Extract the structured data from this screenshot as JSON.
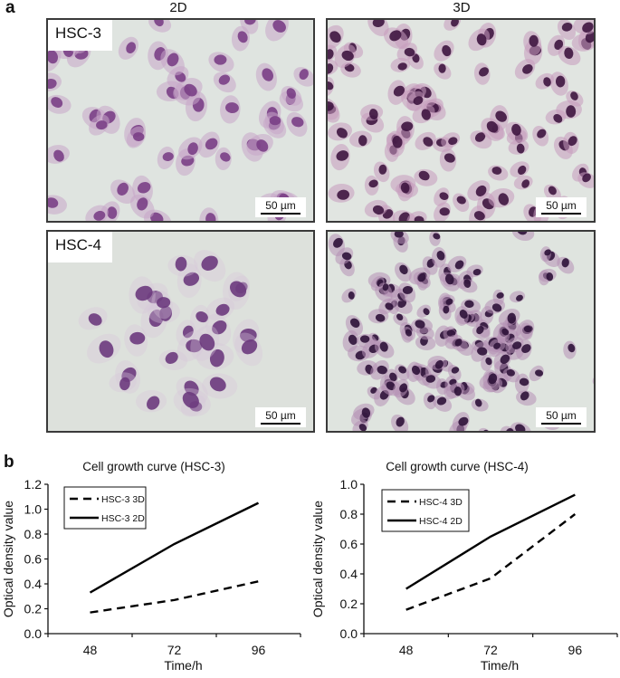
{
  "figure": {
    "panel_a_label": "a",
    "panel_b_label": "b",
    "column_headers": [
      "2D",
      "3D"
    ],
    "micrographs": [
      {
        "row_label": "HSC-3",
        "condition": "2D",
        "scale_bar": "50 µm",
        "stain_colors": {
          "background": "#dfe4e0",
          "nucleus": "#7a3f86",
          "cytoplasm": "#c7a6c9"
        }
      },
      {
        "row_label": "",
        "condition": "3D",
        "scale_bar": "50 µm",
        "stain_colors": {
          "background": "#e1e5e1",
          "nucleus": "#3e1540",
          "cytoplasm": "#c79bbd"
        }
      },
      {
        "row_label": "HSC-4",
        "condition": "2D",
        "scale_bar": "50 µm",
        "stain_colors": {
          "background": "#dde1dc",
          "nucleus": "#6c3a7d",
          "cytoplasm": "#d8c6da"
        }
      },
      {
        "row_label": "",
        "condition": "3D",
        "scale_bar": "50 µm",
        "stain_colors": {
          "background": "#dfe4df",
          "nucleus": "#2e1238",
          "cytoplasm": "#b48fb4"
        }
      }
    ]
  },
  "chart_data": [
    {
      "type": "line",
      "title": "Cell growth curve (HSC-3)",
      "xlabel": "Time/h",
      "ylabel": "Optical density value",
      "categories": [
        "48",
        "72",
        "96"
      ],
      "ylim": [
        0.0,
        1.2
      ],
      "yticks": [
        "0.0",
        "0.2",
        "0.4",
        "0.6",
        "0.8",
        "1.0",
        "1.2"
      ],
      "grid": false,
      "legend_position": "upper-left",
      "series": [
        {
          "name": "HSC-3 3D",
          "style": "dashed",
          "values": [
            0.17,
            0.27,
            0.42
          ]
        },
        {
          "name": "HSC-3 2D",
          "style": "solid",
          "values": [
            0.33,
            0.72,
            1.05
          ]
        }
      ]
    },
    {
      "type": "line",
      "title": "Cell growth curve (HSC-4)",
      "xlabel": "Time/h",
      "ylabel": "Optical density value",
      "categories": [
        "48",
        "72",
        "96"
      ],
      "ylim": [
        0.0,
        1.0
      ],
      "yticks": [
        "0.0",
        "0.2",
        "0.4",
        "0.6",
        "0.8",
        "1.0"
      ],
      "grid": false,
      "legend_position": "upper-left",
      "series": [
        {
          "name": "HSC-4 3D",
          "style": "dashed",
          "values": [
            0.16,
            0.37,
            0.8
          ]
        },
        {
          "name": "HSC-4 2D",
          "style": "solid",
          "values": [
            0.3,
            0.65,
            0.93
          ]
        }
      ]
    }
  ]
}
